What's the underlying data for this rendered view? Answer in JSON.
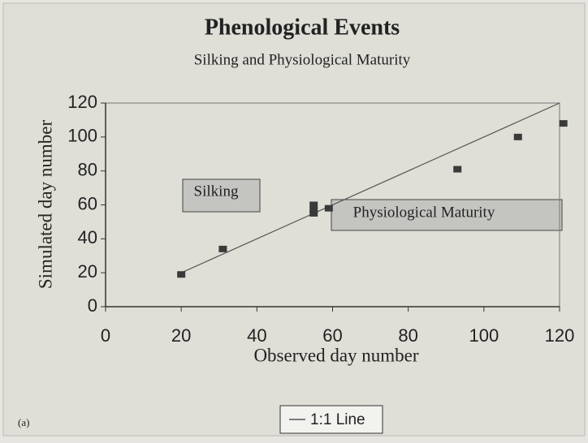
{
  "chart_data": {
    "type": "scatter",
    "title": "Phenological Events",
    "subtitle": "Silking and Physiological Maturity",
    "x_label": "Observed day number",
    "y_label": "Simulated day number",
    "x": [
      20,
      31,
      55,
      55,
      55,
      59,
      93,
      109,
      121
    ],
    "values": [
      19,
      34,
      55,
      57,
      60,
      58,
      81,
      100,
      108
    ],
    "color": "#3a3a3a",
    "series": [
      {
        "name": "1:1 Line",
        "x": [
          20,
          120
        ],
        "values": [
          20,
          120
        ],
        "color": "#555555"
      }
    ],
    "annotations": [
      "Silking",
      "Physiological Maturity"
    ],
    "panel_label": "(a)",
    "xlim": [
      0,
      120
    ],
    "ylim": [
      0,
      120
    ],
    "xticks": [
      0,
      20,
      40,
      60,
      80,
      100,
      120
    ],
    "yticks": [
      0,
      20,
      40,
      60,
      80,
      100,
      120
    ]
  }
}
